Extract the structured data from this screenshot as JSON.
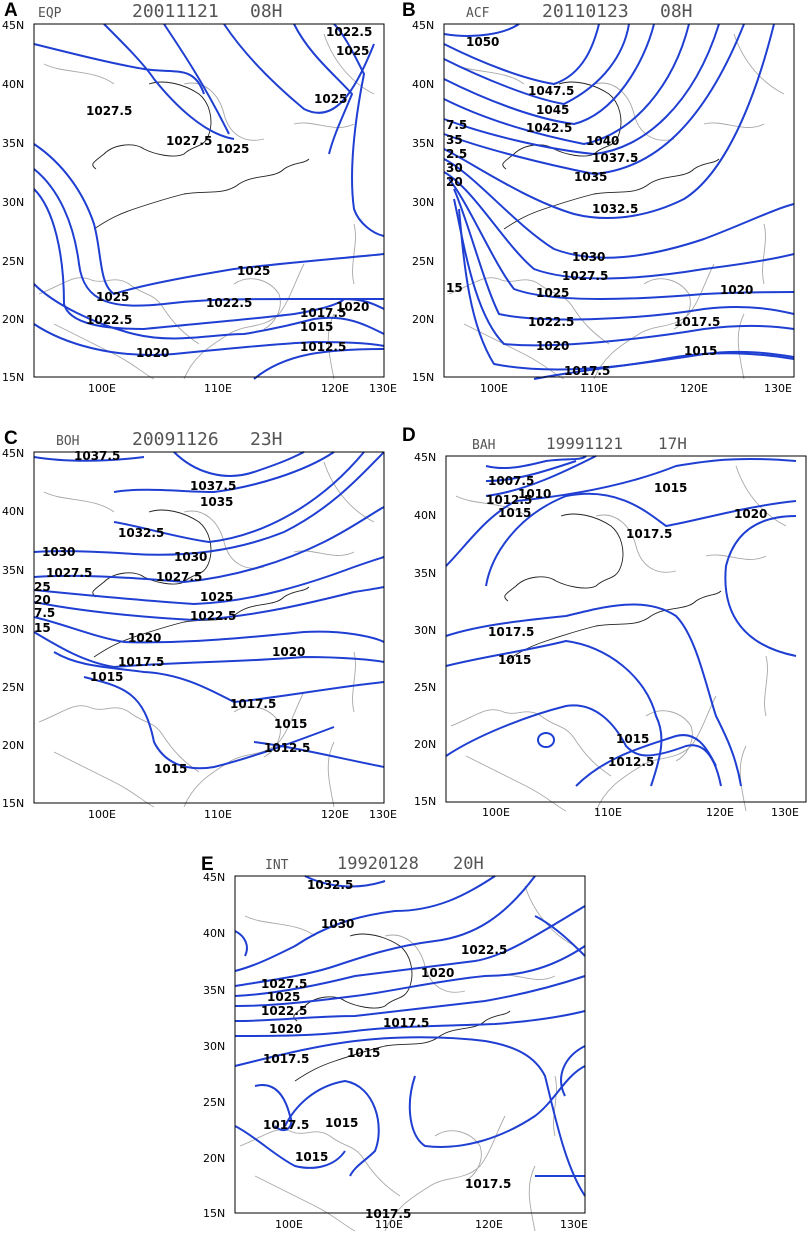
{
  "panels": [
    {
      "letter": "A",
      "case": "EQP",
      "date": "20011121",
      "hour": "08H",
      "labels": [
        "1022.5",
        "1025",
        "1025",
        "1027.5",
        "1027.5",
        "1025",
        "1025",
        "1025",
        "1022.5",
        "1022.5",
        "1017.5",
        "1020",
        "1015",
        "1012.5",
        "1020"
      ]
    },
    {
      "letter": "B",
      "case": "ACF",
      "date": "20110123",
      "hour": "08H",
      "labels": [
        "1050",
        "1047.5",
        "1045",
        "1042.5",
        "1040",
        "1037.5",
        "1035",
        "1032.5",
        "1030",
        "1027.5",
        "1025",
        "1022.5",
        "1020",
        "1017.5",
        "1020",
        "1017.5",
        "1015",
        "7.5",
        "35",
        "2.5",
        "30",
        "20",
        "15"
      ]
    },
    {
      "letter": "C",
      "case": "BOH",
      "date": "20091126",
      "hour": "23H",
      "labels": [
        "1037.5",
        "1037.5",
        "1035",
        "1032.5",
        "1030",
        "1030",
        "1027.5",
        "1027.5",
        "1025",
        "1022.5",
        "1020",
        "1020",
        "1017.5",
        "1017.5",
        "1015",
        "1015",
        "1012.5",
        "1015",
        "25",
        "20",
        "7.5",
        "15"
      ]
    },
    {
      "letter": "D",
      "case": "BAH",
      "date": "19991121",
      "hour": "17H",
      "labels": [
        "1007.5",
        "1010",
        "1012.5",
        "1015",
        "1015",
        "1017.5",
        "1020",
        "1017.5",
        "1015",
        "1015",
        "1012.5"
      ]
    },
    {
      "letter": "E",
      "case": "INT",
      "date": "19920128",
      "hour": "20H",
      "labels": [
        "1032.5",
        "1030",
        "1022.5",
        "1020",
        "1027.5",
        "1025",
        "1022.5",
        "1020",
        "1017.5",
        "1017.5",
        "1015",
        "1017.5",
        "1015",
        "1015",
        "1017.5",
        "1017.5"
      ]
    }
  ],
  "axes": {
    "x_ticks": [
      "100E",
      "110E",
      "120E",
      "130E"
    ],
    "y_ticks": [
      "15N",
      "20N",
      "25N",
      "30N",
      "35N",
      "40N",
      "45N"
    ]
  },
  "colors": {
    "isobar": "#1f3fd2",
    "coastline": "#a8a8a8",
    "border": "#222222"
  }
}
